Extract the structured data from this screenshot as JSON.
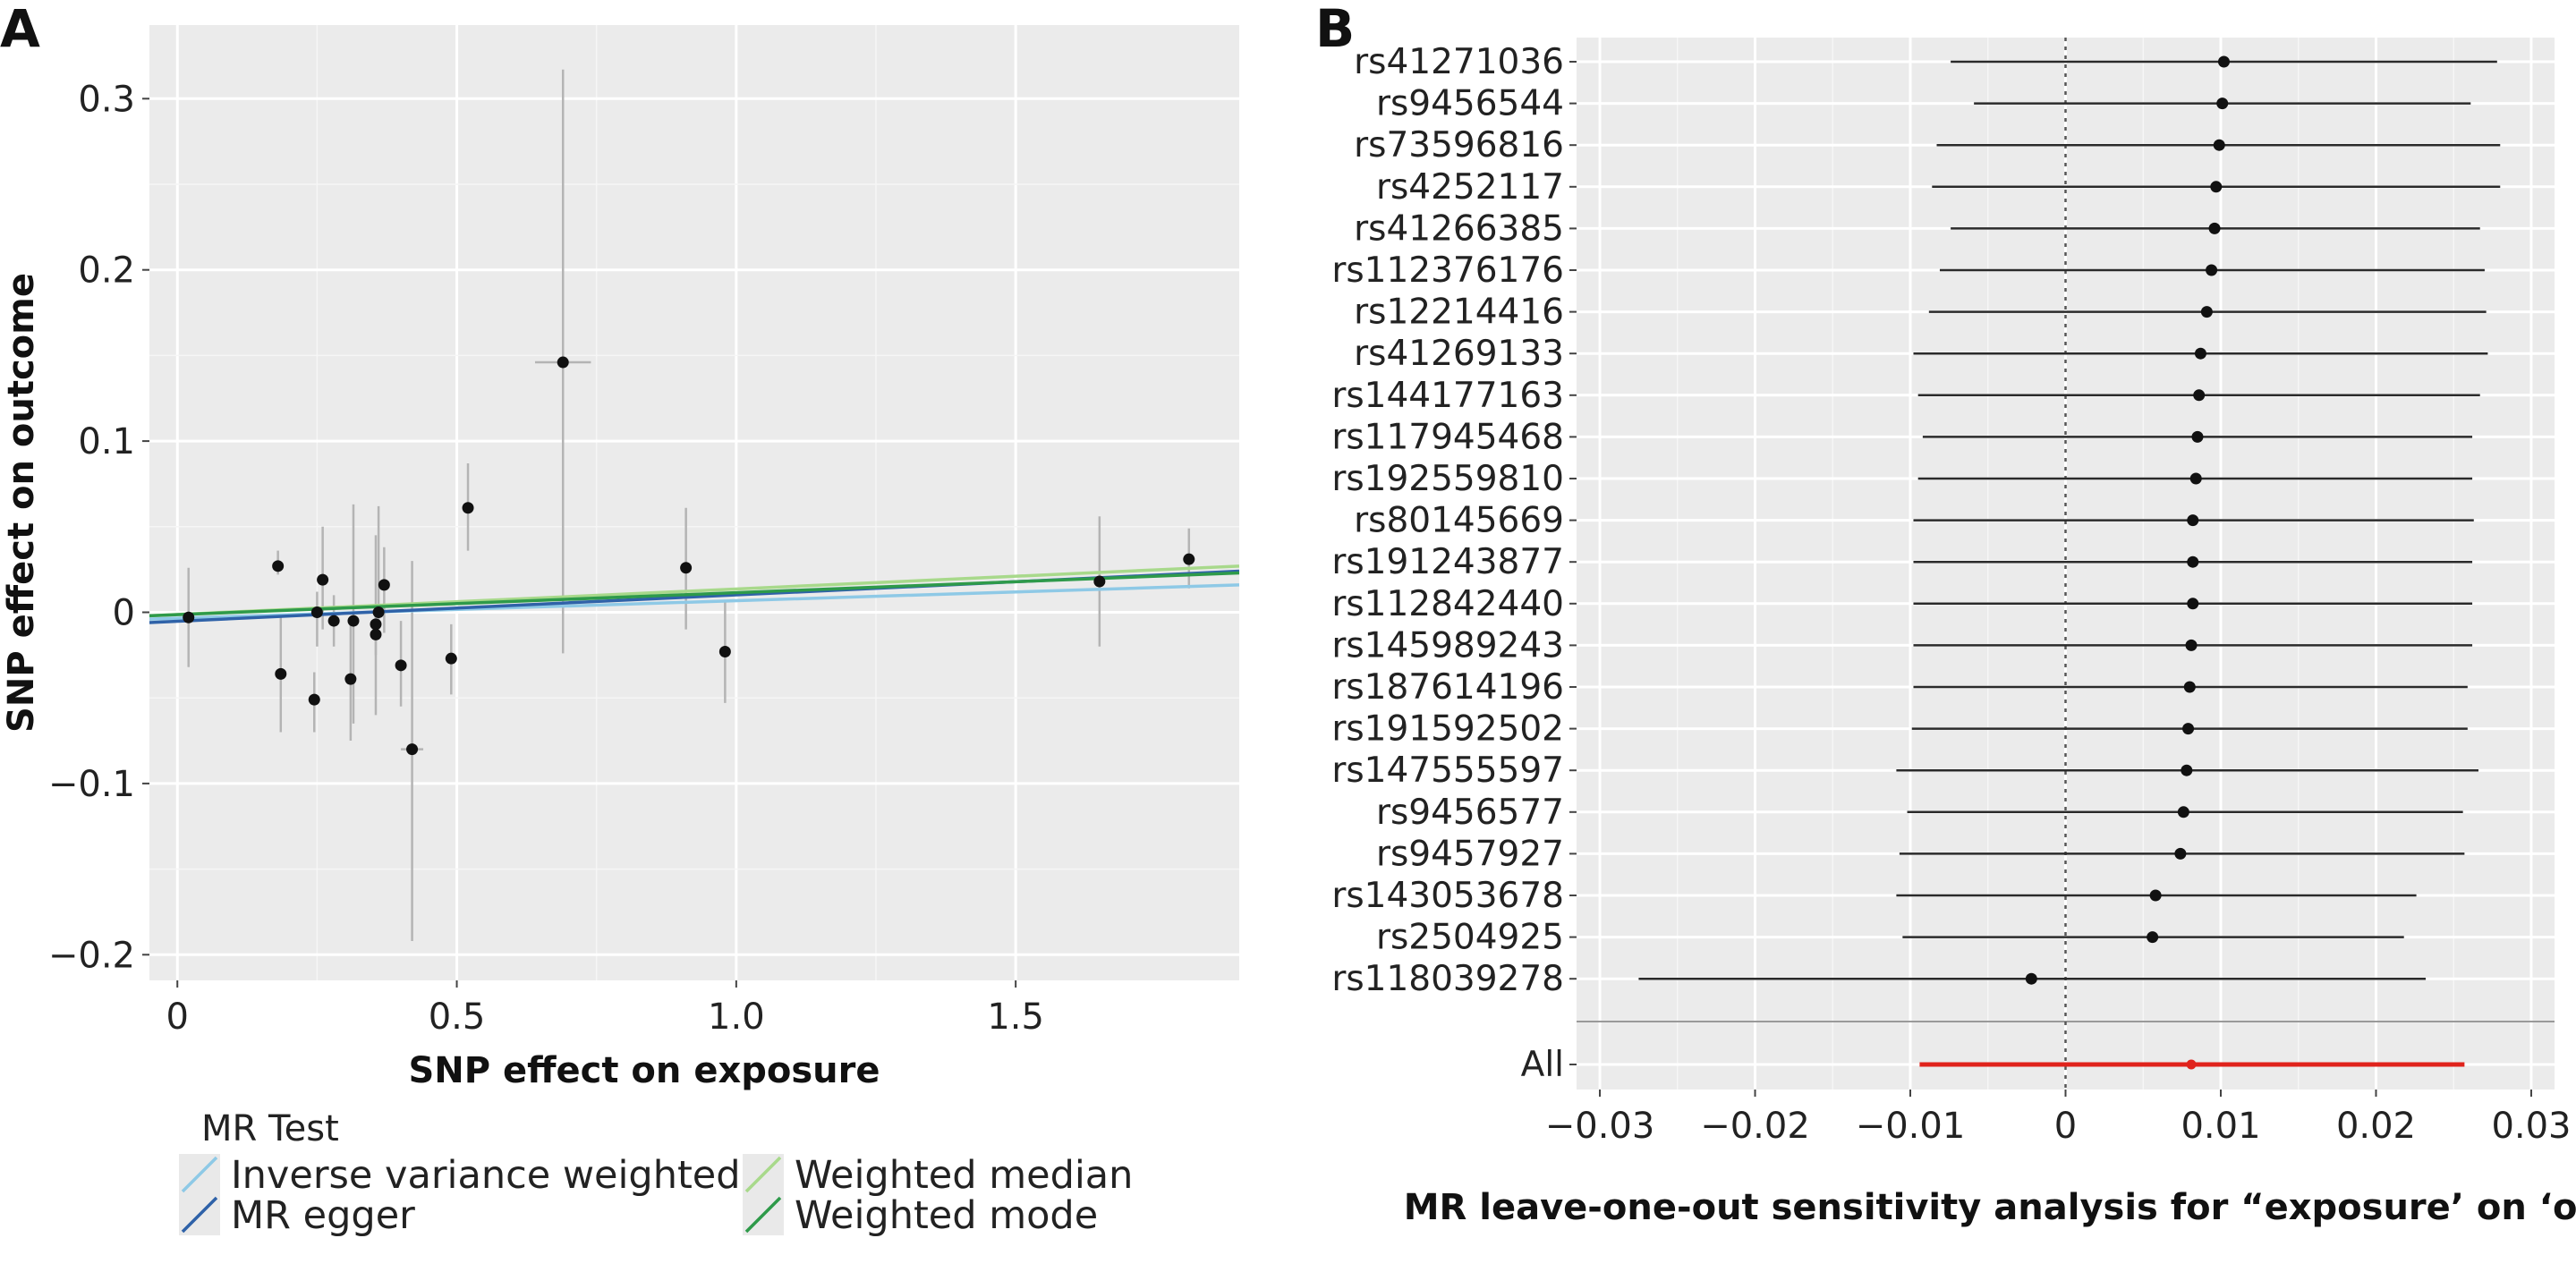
{
  "chart_data": [
    {
      "panel_label": "A",
      "type": "scatter",
      "xlabel": "SNP effect on exposure",
      "ylabel": "SNP effect on outcome",
      "xlim": [
        -0.05,
        1.9
      ],
      "ylim": [
        -0.215,
        0.343
      ],
      "xticks": [
        0,
        0.5,
        1.0,
        1.5
      ],
      "xtick_labels": [
        "0",
        "0.5",
        "1.0",
        "1.5"
      ],
      "yticks": [
        0.3,
        0.2,
        0.1,
        0,
        -0.1,
        -0.2
      ],
      "ytick_labels": [
        "0.3",
        "0.2",
        "0.1",
        "0",
        "−0.1",
        "−0.2"
      ],
      "grid": true,
      "points": [
        {
          "x": 0.02,
          "y": -0.003,
          "ylo": -0.032,
          "yhi": 0.026,
          "xlo": 0.02,
          "xhi": 0.02
        },
        {
          "x": 0.18,
          "y": 0.027,
          "ylo": 0.022,
          "yhi": 0.036,
          "xlo": 0.17,
          "xhi": 0.19
        },
        {
          "x": 0.185,
          "y": -0.036,
          "ylo": -0.07,
          "yhi": -0.002,
          "xlo": 0.185,
          "xhi": 0.185
        },
        {
          "x": 0.245,
          "y": -0.051,
          "ylo": -0.07,
          "yhi": -0.035,
          "xlo": 0.245,
          "xhi": 0.245
        },
        {
          "x": 0.25,
          "y": 0.0,
          "ylo": -0.02,
          "yhi": 0.012,
          "xlo": 0.25,
          "xhi": 0.25
        },
        {
          "x": 0.26,
          "y": 0.019,
          "ylo": -0.01,
          "yhi": 0.05,
          "xlo": 0.26,
          "xhi": 0.26
        },
        {
          "x": 0.28,
          "y": -0.005,
          "ylo": -0.02,
          "yhi": 0.01,
          "xlo": 0.28,
          "xhi": 0.28
        },
        {
          "x": 0.31,
          "y": -0.039,
          "ylo": -0.075,
          "yhi": -0.003,
          "xlo": 0.31,
          "xhi": 0.31
        },
        {
          "x": 0.315,
          "y": -0.005,
          "ylo": -0.065,
          "yhi": 0.063,
          "xlo": 0.315,
          "xhi": 0.315
        },
        {
          "x": 0.355,
          "y": -0.007,
          "ylo": -0.06,
          "yhi": 0.045,
          "xlo": 0.355,
          "xhi": 0.355
        },
        {
          "x": 0.355,
          "y": -0.013,
          "ylo": -0.025,
          "yhi": -0.001,
          "xlo": 0.355,
          "xhi": 0.355
        },
        {
          "x": 0.36,
          "y": 0.0,
          "ylo": -0.005,
          "yhi": 0.062,
          "xlo": 0.36,
          "xhi": 0.36
        },
        {
          "x": 0.37,
          "y": 0.016,
          "ylo": -0.012,
          "yhi": 0.038,
          "xlo": 0.37,
          "xhi": 0.37
        },
        {
          "x": 0.4,
          "y": -0.031,
          "ylo": -0.055,
          "yhi": -0.005,
          "xlo": 0.4,
          "xhi": 0.4
        },
        {
          "x": 0.42,
          "y": -0.08,
          "ylo": -0.192,
          "yhi": 0.03,
          "xlo": 0.4,
          "xhi": 0.44
        },
        {
          "x": 0.49,
          "y": -0.027,
          "ylo": -0.048,
          "yhi": -0.007,
          "xlo": 0.49,
          "xhi": 0.49
        },
        {
          "x": 0.52,
          "y": 0.061,
          "ylo": 0.036,
          "yhi": 0.087,
          "xlo": 0.515,
          "xhi": 0.525
        },
        {
          "x": 0.69,
          "y": 0.146,
          "ylo": -0.024,
          "yhi": 0.317,
          "xlo": 0.64,
          "xhi": 0.74
        },
        {
          "x": 0.91,
          "y": 0.026,
          "ylo": -0.01,
          "yhi": 0.061,
          "xlo": 0.91,
          "xhi": 0.91
        },
        {
          "x": 0.98,
          "y": -0.023,
          "ylo": -0.053,
          "yhi": 0.006,
          "xlo": 0.98,
          "xhi": 0.98
        },
        {
          "x": 1.65,
          "y": 0.018,
          "ylo": -0.02,
          "yhi": 0.056,
          "xlo": 1.65,
          "xhi": 1.65
        },
        {
          "x": 1.81,
          "y": 0.031,
          "ylo": 0.014,
          "yhi": 0.049,
          "xlo": 1.8,
          "xhi": 1.82
        }
      ],
      "series": [
        {
          "name": "Inverse variance weighted",
          "color": "#8ec9e6",
          "x": [
            -0.05,
            1.9
          ],
          "y": [
            -0.004,
            0.016
          ]
        },
        {
          "name": "MR egger",
          "color": "#2f62a8",
          "x": [
            -0.05,
            1.9
          ],
          "y": [
            -0.006,
            0.024
          ]
        },
        {
          "name": "Weighted median",
          "color": "#a8d98b",
          "x": [
            -0.05,
            1.9
          ],
          "y": [
            -0.002,
            0.027
          ]
        },
        {
          "name": "Weighted mode",
          "color": "#2e9a4a",
          "x": [
            -0.05,
            1.9
          ],
          "y": [
            -0.002,
            0.023
          ]
        }
      ],
      "legend": {
        "title": "MR Test",
        "placement": "bottom"
      }
    },
    {
      "panel_label": "B",
      "type": "forest",
      "xlabel": "MR leave-one-out sensitivity analysis for “exposure’ on ‘outcome’",
      "ylabel": "",
      "xlim": [
        -0.0315,
        0.0315
      ],
      "xticks": [
        -0.03,
        -0.02,
        -0.01,
        0,
        0.01,
        0.02,
        0.03
      ],
      "xtick_labels": [
        "−0.03",
        "−0.02",
        "−0.01",
        "0",
        "0.01",
        "0.02",
        "0.03"
      ],
      "grid": true,
      "reference_line_x": 0,
      "rows": [
        {
          "label": "rs41271036",
          "est": 0.0102,
          "lo": -0.0074,
          "hi": 0.0278
        },
        {
          "label": "rs9456544",
          "est": 0.0101,
          "lo": -0.0059,
          "hi": 0.0261
        },
        {
          "label": "rs73596816",
          "est": 0.0099,
          "lo": -0.0083,
          "hi": 0.028
        },
        {
          "label": "rs4252117",
          "est": 0.0097,
          "lo": -0.0086,
          "hi": 0.028
        },
        {
          "label": "rs41266385",
          "est": 0.0096,
          "lo": -0.0074,
          "hi": 0.0267
        },
        {
          "label": "rs112376176",
          "est": 0.0094,
          "lo": -0.0081,
          "hi": 0.027
        },
        {
          "label": "rs12214416",
          "est": 0.0091,
          "lo": -0.0088,
          "hi": 0.0271
        },
        {
          "label": "rs41269133",
          "est": 0.0087,
          "lo": -0.0098,
          "hi": 0.0272
        },
        {
          "label": "rs144177163",
          "est": 0.0086,
          "lo": -0.0095,
          "hi": 0.0267
        },
        {
          "label": "rs117945468",
          "est": 0.0085,
          "lo": -0.0092,
          "hi": 0.0262
        },
        {
          "label": "rs192559810",
          "est": 0.0084,
          "lo": -0.0095,
          "hi": 0.0262
        },
        {
          "label": "rs80145669",
          "est": 0.0082,
          "lo": -0.0098,
          "hi": 0.0263
        },
        {
          "label": "rs191243877",
          "est": 0.0082,
          "lo": -0.0098,
          "hi": 0.0262
        },
        {
          "label": "rs112842440",
          "est": 0.0082,
          "lo": -0.0098,
          "hi": 0.0262
        },
        {
          "label": "rs145989243",
          "est": 0.0081,
          "lo": -0.0098,
          "hi": 0.0262
        },
        {
          "label": "rs187614196",
          "est": 0.008,
          "lo": -0.0098,
          "hi": 0.0259
        },
        {
          "label": "rs191592502",
          "est": 0.0079,
          "lo": -0.0099,
          "hi": 0.0259
        },
        {
          "label": "rs147555597",
          "est": 0.0078,
          "lo": -0.0109,
          "hi": 0.0266
        },
        {
          "label": "rs9456577",
          "est": 0.0076,
          "lo": -0.0102,
          "hi": 0.0256
        },
        {
          "label": "rs9457927",
          "est": 0.0074,
          "lo": -0.0107,
          "hi": 0.0257
        },
        {
          "label": "rs143053678",
          "est": 0.0058,
          "lo": -0.0109,
          "hi": 0.0226
        },
        {
          "label": "rs2504925",
          "est": 0.0056,
          "lo": -0.0105,
          "hi": 0.0218
        },
        {
          "label": "rs118039278",
          "est": -0.0022,
          "lo": -0.0275,
          "hi": 0.0232
        }
      ],
      "overall": {
        "label": "All",
        "est": 0.0081,
        "lo": -0.0094,
        "hi": 0.0257,
        "color": "#e0231c"
      }
    }
  ]
}
